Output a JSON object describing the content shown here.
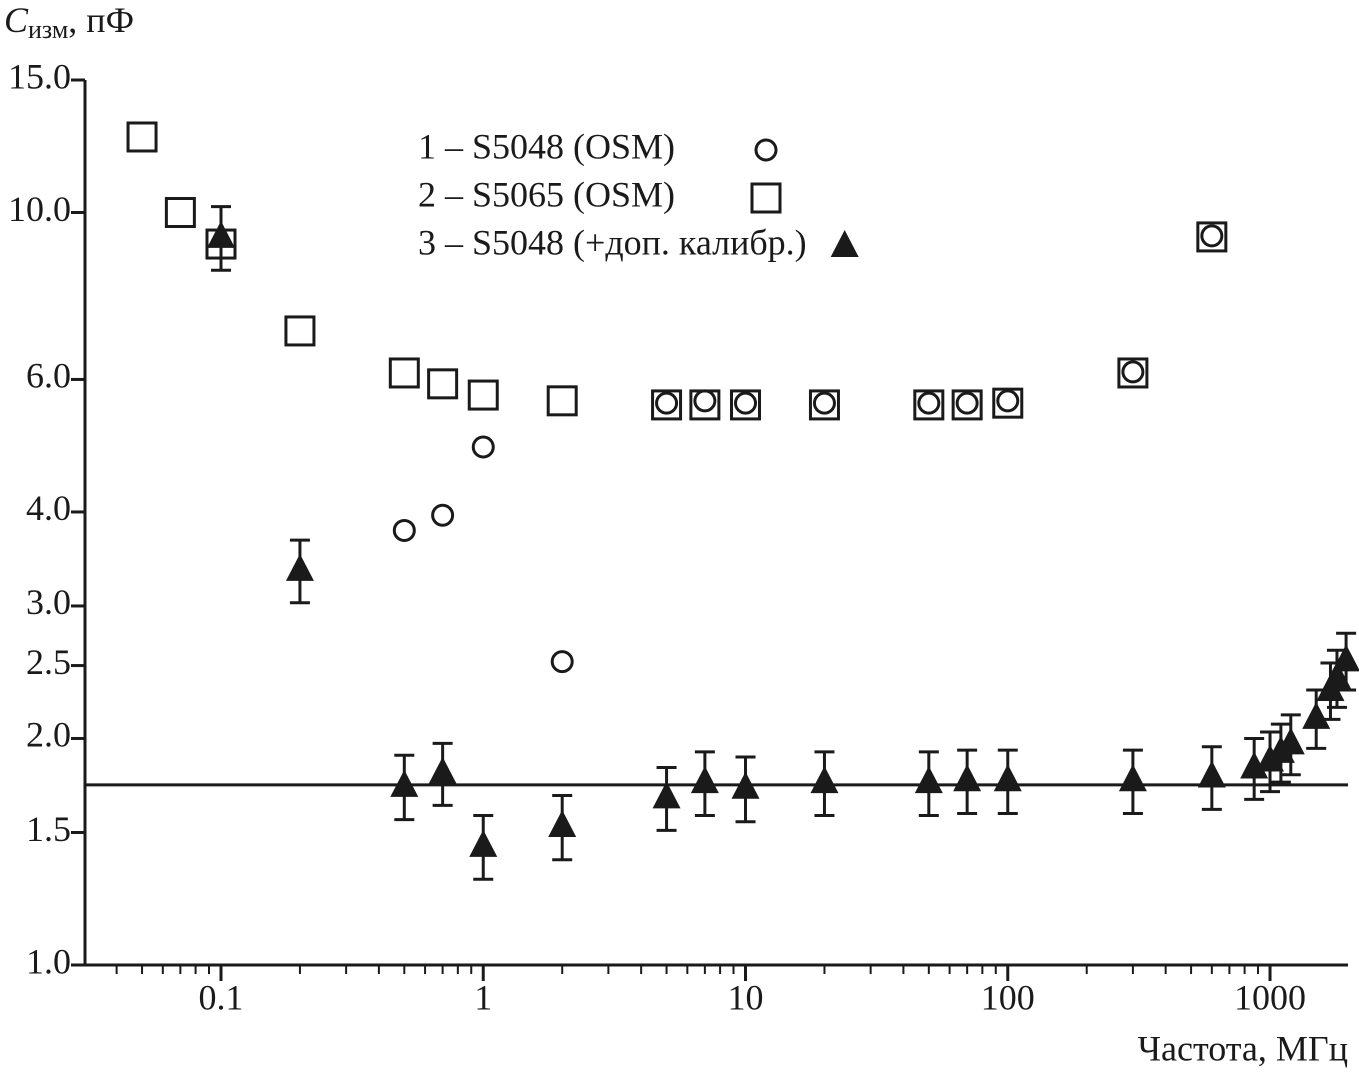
{
  "chart_data": {
    "type": "scatter",
    "ylabel": [
      "C",
      "изм",
      ", пФ"
    ],
    "xlabel": "Частота, МГц",
    "xscale": "log",
    "yscale": "log",
    "xlim": [
      0.0303,
      1983
    ],
    "ylim": [
      1,
      15
    ],
    "xticks": [
      0.1,
      1,
      10,
      100,
      1000
    ],
    "xminorticks": [
      0.04,
      0.05,
      0.06,
      0.07,
      0.08,
      0.09,
      0.2,
      0.3,
      0.4,
      0.5,
      0.6,
      0.7,
      0.8,
      0.9,
      2,
      3,
      4,
      5,
      6,
      7,
      8,
      9,
      20,
      30,
      40,
      50,
      60,
      70,
      80,
      90,
      200,
      300,
      400,
      500,
      600,
      700,
      800,
      900
    ],
    "yticks": [
      {
        "value": 1,
        "label": "1.0"
      },
      1.5,
      {
        "value": 2,
        "label": "2.0"
      },
      2.5,
      {
        "value": 3,
        "label": "3.0"
      },
      {
        "value": 4,
        "label": "4.0"
      },
      {
        "value": 6,
        "label": "6.0"
      },
      {
        "value": 10,
        "label": "10.0"
      },
      {
        "value": 15,
        "label": "15.0"
      }
    ],
    "hline": 1.735,
    "color": "#1a1a1a",
    "series": [
      {
        "name": "1 – S5048 (OSM)",
        "marker": "circle",
        "x": [
          0.5,
          0.7,
          1,
          2,
          5,
          7,
          10,
          20,
          50,
          70,
          100,
          300,
          600
        ],
        "values": [
          3.78,
          3.96,
          4.88,
          2.53,
          5.58,
          5.62,
          5.58,
          5.58,
          5.58,
          5.58,
          5.62,
          6.14,
          9.31
        ]
      },
      {
        "name": "2 – S5065 (OSM)",
        "marker": "square",
        "x": [
          0.05,
          0.07,
          0.1,
          0.2,
          0.5,
          0.7,
          1,
          2,
          5,
          7,
          10,
          20,
          50,
          70,
          100,
          300,
          600
        ],
        "values": [
          12.6,
          10.0,
          9.08,
          6.96,
          6.12,
          5.92,
          5.72,
          5.62,
          5.55,
          5.55,
          5.55,
          5.55,
          5.55,
          5.55,
          5.58,
          6.12,
          9.28
        ]
      },
      {
        "name": "3 – S5048 (+доп. калибр.)",
        "marker": "triangle",
        "x": [
          0.1,
          0.2,
          0.5,
          0.7,
          1,
          2,
          5,
          7,
          10,
          20,
          50,
          70,
          100,
          300,
          600,
          870,
          1000,
          1100,
          1200,
          1500,
          1700,
          1800,
          1950
        ],
        "values": [
          9.28,
          3.35,
          1.73,
          1.8,
          1.44,
          1.53,
          1.67,
          1.75,
          1.72,
          1.75,
          1.75,
          1.76,
          1.76,
          1.76,
          1.78,
          1.83,
          1.87,
          1.92,
          1.97,
          2.13,
          2.32,
          2.41,
          2.54
        ],
        "errors": [
          0.9,
          0.32,
          0.17,
          0.17,
          0.14,
          0.15,
          0.16,
          0.17,
          0.17,
          0.17,
          0.17,
          0.17,
          0.17,
          0.17,
          0.17,
          0.17,
          0.17,
          0.17,
          0.18,
          0.19,
          0.2,
          0.21,
          0.22
        ]
      }
    ]
  }
}
